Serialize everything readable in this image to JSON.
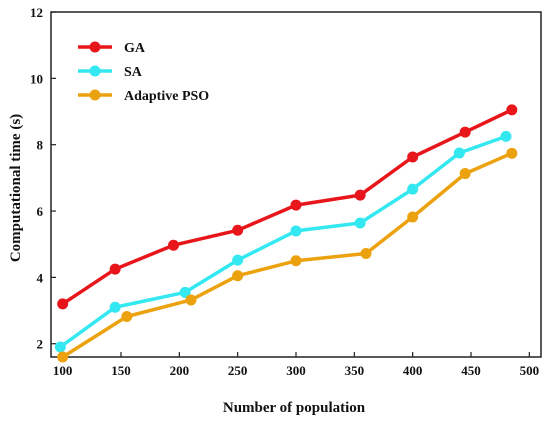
{
  "chart_data": {
    "type": "line",
    "xlabel": "Number of population",
    "ylabel": "Computational time (s)",
    "xlim": [
      90,
      510
    ],
    "ylim": [
      1.6,
      12
    ],
    "xticks": [
      100,
      150,
      200,
      250,
      300,
      350,
      400,
      450,
      500
    ],
    "yticks": [
      2,
      4,
      6,
      8,
      10,
      12
    ],
    "grid": false,
    "legend_position": "top-left",
    "series": [
      {
        "name": "GA",
        "color": "#e8161b",
        "x": [
          100,
          145,
          195,
          250,
          300,
          355,
          400,
          445,
          485
        ],
        "y": [
          3.2,
          4.25,
          4.97,
          5.42,
          6.18,
          6.48,
          7.63,
          8.38,
          9.05
        ]
      },
      {
        "name": "SA",
        "color": "#33e8f0",
        "x": [
          98,
          145,
          205,
          250,
          300,
          355,
          400,
          440,
          480
        ],
        "y": [
          1.9,
          3.1,
          3.55,
          4.52,
          5.4,
          5.64,
          6.66,
          7.75,
          8.25
        ]
      },
      {
        "name": "Adaptive PSO",
        "color": "#eba20e",
        "x": [
          100,
          155,
          210,
          250,
          300,
          360,
          400,
          445,
          485
        ],
        "y": [
          1.6,
          2.82,
          3.32,
          4.05,
          4.5,
          4.72,
          5.82,
          7.13,
          7.74
        ]
      }
    ]
  }
}
